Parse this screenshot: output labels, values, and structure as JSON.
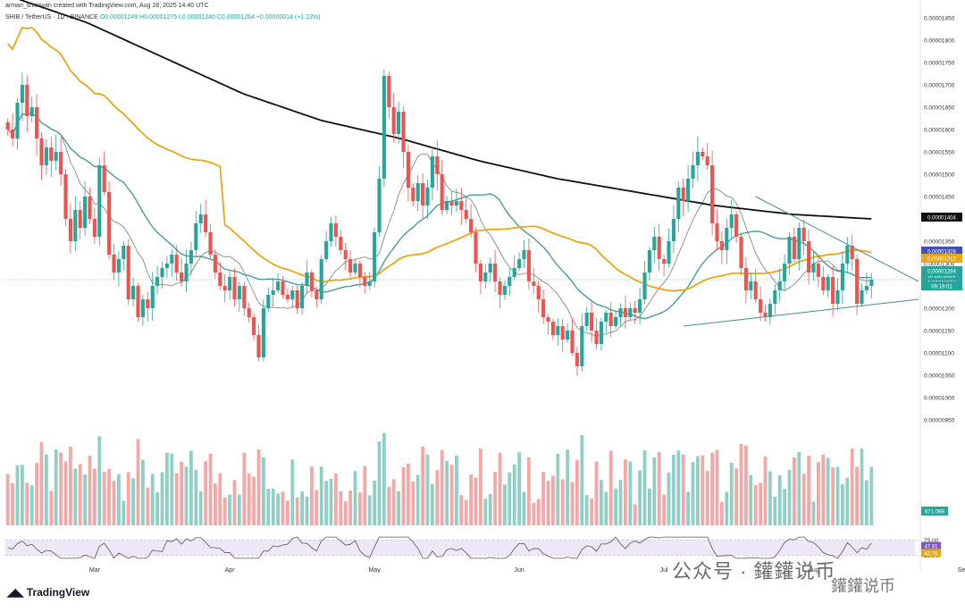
{
  "header": {
    "created_by": "arman_shirinyan created with TradingView.com, Aug 28, 2025 14:40 UTC",
    "symbol": "SHIB / TetherUS · 1D · BINANCE",
    "ohlc": "O0.00001249 H0.00001275 L0.00001240 C0.00001264 +0.00000014 (+1.12%)"
  },
  "footer": {
    "brand": "TradingView"
  },
  "watermark": {
    "text1": "公众号 · 鑵鑵说币",
    "text2": "鑵鑵说币"
  },
  "colors": {
    "up": "#26a69a",
    "down": "#ef5350",
    "vol_up": "#8fcfc5",
    "vol_down": "#f4a7a6",
    "ma_fast": "#7a7a7a",
    "ma_mid": "#4a9aa0",
    "ma_100": "#e6a817",
    "ma_200": "#111111",
    "trendline": "#4a8a94",
    "rsi_band": "#ede7f6"
  },
  "chart_data": {
    "type": "candlestick",
    "pair": "SHIBUSDT",
    "ylim": [
      1.1e-05,
      1.85e-05
    ],
    "price_ticks": [
      "0.00001850",
      "0.00001800",
      "0.00001750",
      "0.00001700",
      "0.00001650",
      "0.00001600",
      "0.00001550",
      "0.00001500",
      "0.00001450",
      "0.00001400",
      "0.00001350",
      "0.00001300",
      "0.00001250",
      "0.00001200",
      "0.00001150",
      "0.00001100",
      "0.00001050",
      "0.00001000",
      "0.00000950"
    ],
    "price_ticks_values": [
      1.85e-05,
      1.8e-05,
      1.75e-05,
      1.7e-05,
      1.65e-05,
      1.6e-05,
      1.55e-05,
      1.5e-05,
      1.45e-05,
      1.4e-05,
      1.35e-05,
      1.3e-05,
      1.25e-05,
      1.2e-05,
      1.15e-05,
      1.1e-05,
      1.05e-05,
      1e-05,
      9.5e-06
    ],
    "x_labels": [
      {
        "label": "Mar",
        "i": 18
      },
      {
        "label": "Apr",
        "i": 46
      },
      {
        "label": "May",
        "i": 76
      },
      {
        "label": "Jun",
        "i": 106
      },
      {
        "label": "Jul",
        "i": 136
      },
      {
        "label": "Aug",
        "i": 167
      },
      {
        "label": "Sep",
        "i": 198
      }
    ],
    "price_tags": [
      {
        "label": "0.00001404",
        "value": 1.404e-05,
        "color": "#111111"
      },
      {
        "label": "0.00001328",
        "value": 1.328e-05,
        "color": "#3f51b5"
      },
      {
        "label": "0.00001312",
        "value": 1.312e-05,
        "color": "#e6a817"
      },
      {
        "label": "0.00001284",
        "value": 1.284e-05,
        "color": "#26a69a"
      },
      {
        "label": "SHIBUSDT",
        "value": 1.268e-05,
        "color": "#26a69a"
      },
      {
        "label": "0.00001264",
        "value": 1.258e-05,
        "color": "#26a69a"
      },
      {
        "label": "09:19:01",
        "value": 1.25e-05,
        "color": "#26a69a"
      }
    ],
    "volume_tag": "671.06B",
    "rsi": {
      "ticks": [
        "75.00",
        "25.00"
      ],
      "tags": [
        "47.91",
        "42.76"
      ],
      "range": [
        0,
        100
      ]
    },
    "closes": [
      1.6,
      1.58,
      1.66,
      1.7,
      1.63,
      1.65,
      1.58,
      1.52,
      1.56,
      1.53,
      1.55,
      1.5,
      1.4,
      1.35,
      1.42,
      1.38,
      1.45,
      1.4,
      1.36,
      1.52,
      1.46,
      1.32,
      1.28,
      1.31,
      1.34,
      1.22,
      1.25,
      1.18,
      1.22,
      1.2,
      1.25,
      1.27,
      1.29,
      1.3,
      1.32,
      1.28,
      1.26,
      1.3,
      1.33,
      1.39,
      1.41,
      1.37,
      1.32,
      1.28,
      1.25,
      1.24,
      1.27,
      1.22,
      1.25,
      1.2,
      1.18,
      1.14,
      1.09,
      1.2,
      1.23,
      1.24,
      1.26,
      1.23,
      1.22,
      1.24,
      1.2,
      1.25,
      1.28,
      1.24,
      1.22,
      1.31,
      1.35,
      1.39,
      1.36,
      1.33,
      1.31,
      1.28,
      1.3,
      1.27,
      1.25,
      1.26,
      1.37,
      1.49,
      1.72,
      1.65,
      1.59,
      1.64,
      1.55,
      1.47,
      1.44,
      1.48,
      1.43,
      1.47,
      1.54,
      1.5,
      1.42,
      1.44,
      1.43,
      1.44,
      1.42,
      1.4,
      1.37,
      1.3,
      1.26,
      1.28,
      1.3,
      1.26,
      1.23,
      1.25,
      1.27,
      1.29,
      1.31,
      1.33,
      1.26,
      1.25,
      1.22,
      1.18,
      1.17,
      1.14,
      1.16,
      1.13,
      1.15,
      1.1,
      1.07,
      1.16,
      1.19,
      1.15,
      1.12,
      1.17,
      1.19,
      1.16,
      1.18,
      1.2,
      1.18,
      1.2,
      1.19,
      1.22,
      1.28,
      1.33,
      1.36,
      1.31,
      1.3,
      1.35,
      1.4,
      1.47,
      1.44,
      1.49,
      1.52,
      1.55,
      1.54,
      1.52,
      1.39,
      1.35,
      1.33,
      1.38,
      1.41,
      1.36,
      1.29,
      1.24,
      1.26,
      1.22,
      1.19,
      1.18,
      1.21,
      1.24,
      1.26,
      1.3,
      1.36,
      1.31,
      1.38,
      1.35,
      1.28,
      1.3,
      1.27,
      1.24,
      1.27,
      1.21,
      1.24,
      1.3,
      1.34,
      1.31,
      1.21,
      1.24,
      1.25,
      1.264
    ]
  }
}
